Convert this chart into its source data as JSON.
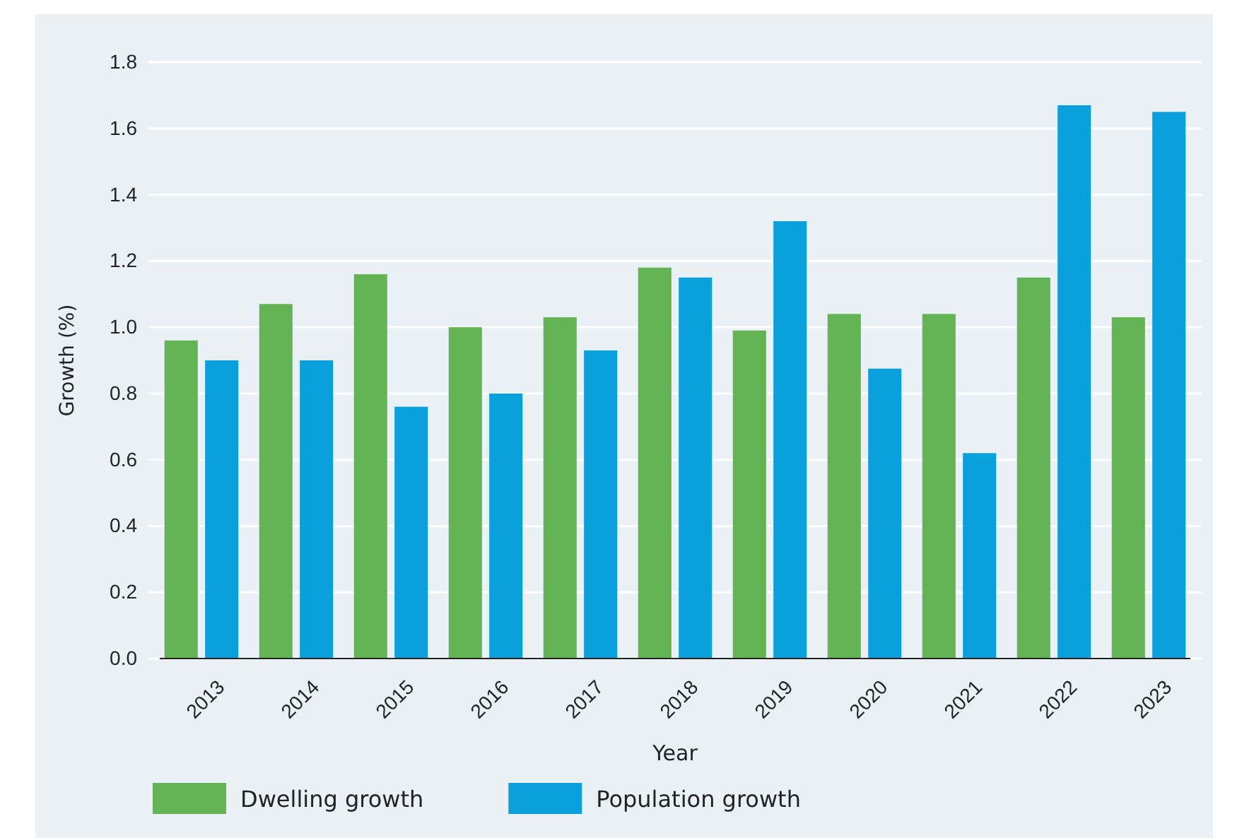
{
  "chart_data": {
    "type": "bar",
    "xlabel": "Year",
    "ylabel": "Growth (%)",
    "categories": [
      "2013",
      "2014",
      "2015",
      "2016",
      "2017",
      "2018",
      "2019",
      "2020",
      "2021",
      "2022",
      "2023"
    ],
    "series": [
      {
        "name": "Dwelling growth",
        "color": "#62b454",
        "values": [
          0.96,
          1.07,
          1.16,
          1.0,
          1.03,
          1.18,
          0.99,
          1.04,
          1.04,
          1.15,
          1.03
        ]
      },
      {
        "name": "Population growth",
        "color": "#0a9fdd",
        "values": [
          0.9,
          0.9,
          0.76,
          0.8,
          0.93,
          1.15,
          1.32,
          0.875,
          0.62,
          1.67,
          1.65
        ]
      }
    ],
    "ylim": [
      0,
      1.8
    ],
    "yticks": [
      {
        "value": 0,
        "label": "0.0"
      },
      {
        "value": 0.2,
        "label": "0.2"
      },
      {
        "value": 0.4,
        "label": "0.4"
      },
      {
        "value": 0.6,
        "label": "0.6"
      },
      {
        "value": 0.8,
        "label": "0.8"
      },
      {
        "value": 1,
        "label": "1.0"
      },
      {
        "value": 1.2,
        "label": "1.2"
      },
      {
        "value": 1.4,
        "label": "1.4"
      },
      {
        "value": 1.6,
        "label": "1.6"
      },
      {
        "value": 1.8,
        "label": "1.8"
      }
    ],
    "grid": "y",
    "legend": "bottom"
  }
}
